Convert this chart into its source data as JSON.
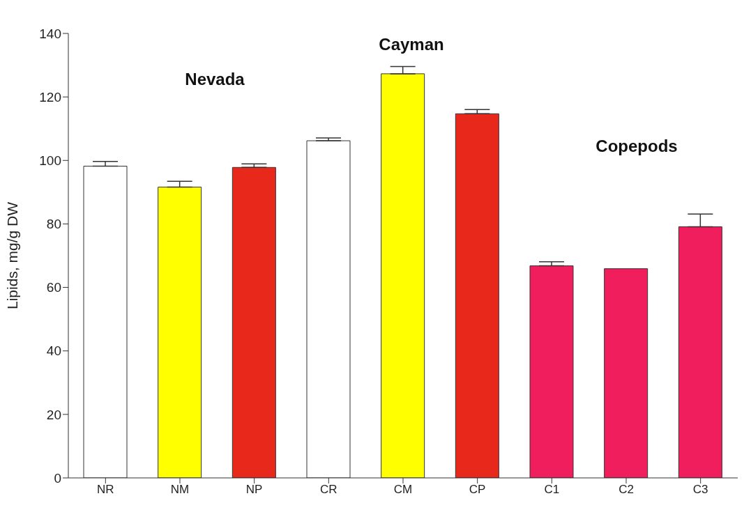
{
  "chart_data": {
    "type": "bar",
    "categories": [
      "NR",
      "NM",
      "NP",
      "CR",
      "CM",
      "CP",
      "C1",
      "C2",
      "C3"
    ],
    "values": [
      98.2,
      91.6,
      97.8,
      106.2,
      127.3,
      114.7,
      66.8,
      65.9,
      79.1
    ],
    "errors": [
      [
        98.2,
        99.7
      ],
      [
        91.6,
        93.4
      ],
      [
        97.8,
        98.9
      ],
      [
        106.2,
        107.1
      ],
      [
        127.3,
        129.6
      ],
      [
        114.7,
        116.0
      ],
      [
        66.8,
        68.1
      ],
      null,
      [
        79.1,
        83.1
      ]
    ],
    "colors": [
      "#ffffff",
      "#ffff00",
      "#e8281a",
      "#ffffff",
      "#ffff00",
      "#e8281a",
      "#f01e5c",
      "#f01e5c",
      "#f01e5c"
    ],
    "ylabel": "Lipids, mg/g DW",
    "ylim": [
      0,
      140
    ],
    "yticks": [
      0,
      20,
      40,
      60,
      80,
      100,
      120,
      140
    ],
    "annotations": [
      "Nevada",
      "Cayman",
      "Copepods"
    ],
    "grid": false,
    "legend": false
  }
}
